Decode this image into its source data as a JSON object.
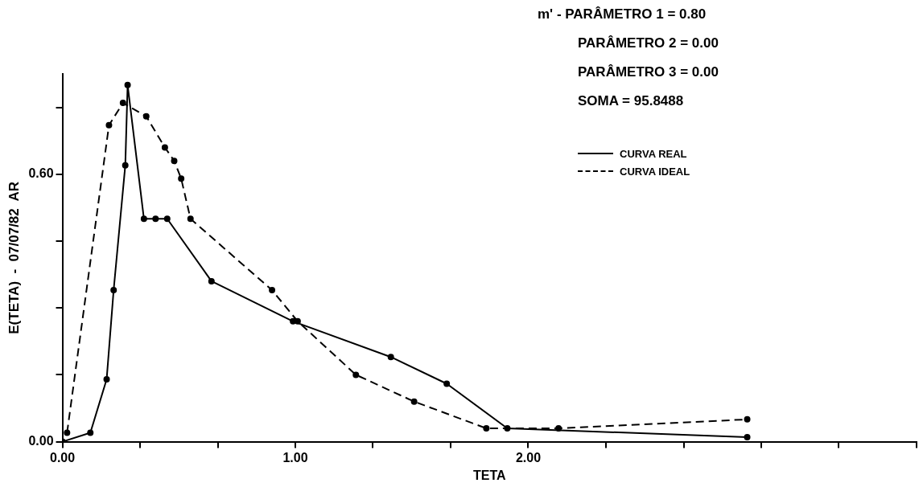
{
  "chart_data": {
    "type": "line",
    "xlabel": "TETA",
    "ylabel": "E(TETA)  -  07/07/82  AR",
    "annotations": [
      "m' - PARÂMETRO 1 = 0.80",
      "PARÂMETRO 2 = 0.00",
      "PARÂMETRO 3 = 0.00",
      "SOMA = 95.8488"
    ],
    "xlim": [
      0,
      3.667
    ],
    "xticks": [
      {
        "value": 0,
        "label": "0.00"
      },
      {
        "value": 0.333,
        "label": null
      },
      {
        "value": 0.667,
        "label": null
      },
      {
        "value": 1,
        "label": "1.00"
      },
      {
        "value": 1.333,
        "label": null
      },
      {
        "value": 1.667,
        "label": null
      },
      {
        "value": 2,
        "label": "2.00"
      },
      {
        "value": 2.333,
        "label": null
      },
      {
        "value": 2.667,
        "label": null
      },
      {
        "value": 3,
        "label": null
      },
      {
        "value": 3.333,
        "label": null
      },
      {
        "value": 3.667,
        "label": null
      }
    ],
    "ylim": [
      0,
      0.825
    ],
    "yticks": [
      {
        "value": 0,
        "label": "0.00"
      },
      {
        "value": 0.15,
        "label": null
      },
      {
        "value": 0.3,
        "label": null
      },
      {
        "value": 0.45,
        "label": null
      },
      {
        "value": 0.6,
        "label": "0.60"
      },
      {
        "value": 0.75,
        "label": null
      }
    ],
    "grid": false,
    "legend": "top right",
    "marker": "circle",
    "series": [
      {
        "name": "CURVA REAL",
        "color": "#000000",
        "line_style": "solid",
        "x": [
          0,
          0.12,
          0.19,
          0.22,
          0.27,
          0.28,
          0.35,
          0.4,
          0.45,
          0.64,
          0.99,
          1.41,
          1.65,
          1.91,
          2.94
        ],
        "values": [
          0,
          0.02,
          0.14,
          0.34,
          0.62,
          0.8,
          0.5,
          0.5,
          0.5,
          0.36,
          0.27,
          0.19,
          0.13,
          0.03,
          0.01
        ]
      },
      {
        "name": "CURVA IDEAL",
        "color": "#000000",
        "line_style": "dashed",
        "x": [
          0.02,
          0.2,
          0.26,
          0.36,
          0.44,
          0.48,
          0.51,
          0.55,
          0.9,
          1.01,
          1.26,
          1.51,
          1.82,
          2.13,
          2.94
        ],
        "values": [
          0.02,
          0.71,
          0.76,
          0.73,
          0.66,
          0.63,
          0.59,
          0.5,
          0.34,
          0.27,
          0.15,
          0.09,
          0.03,
          0.03,
          0.05
        ]
      }
    ]
  }
}
